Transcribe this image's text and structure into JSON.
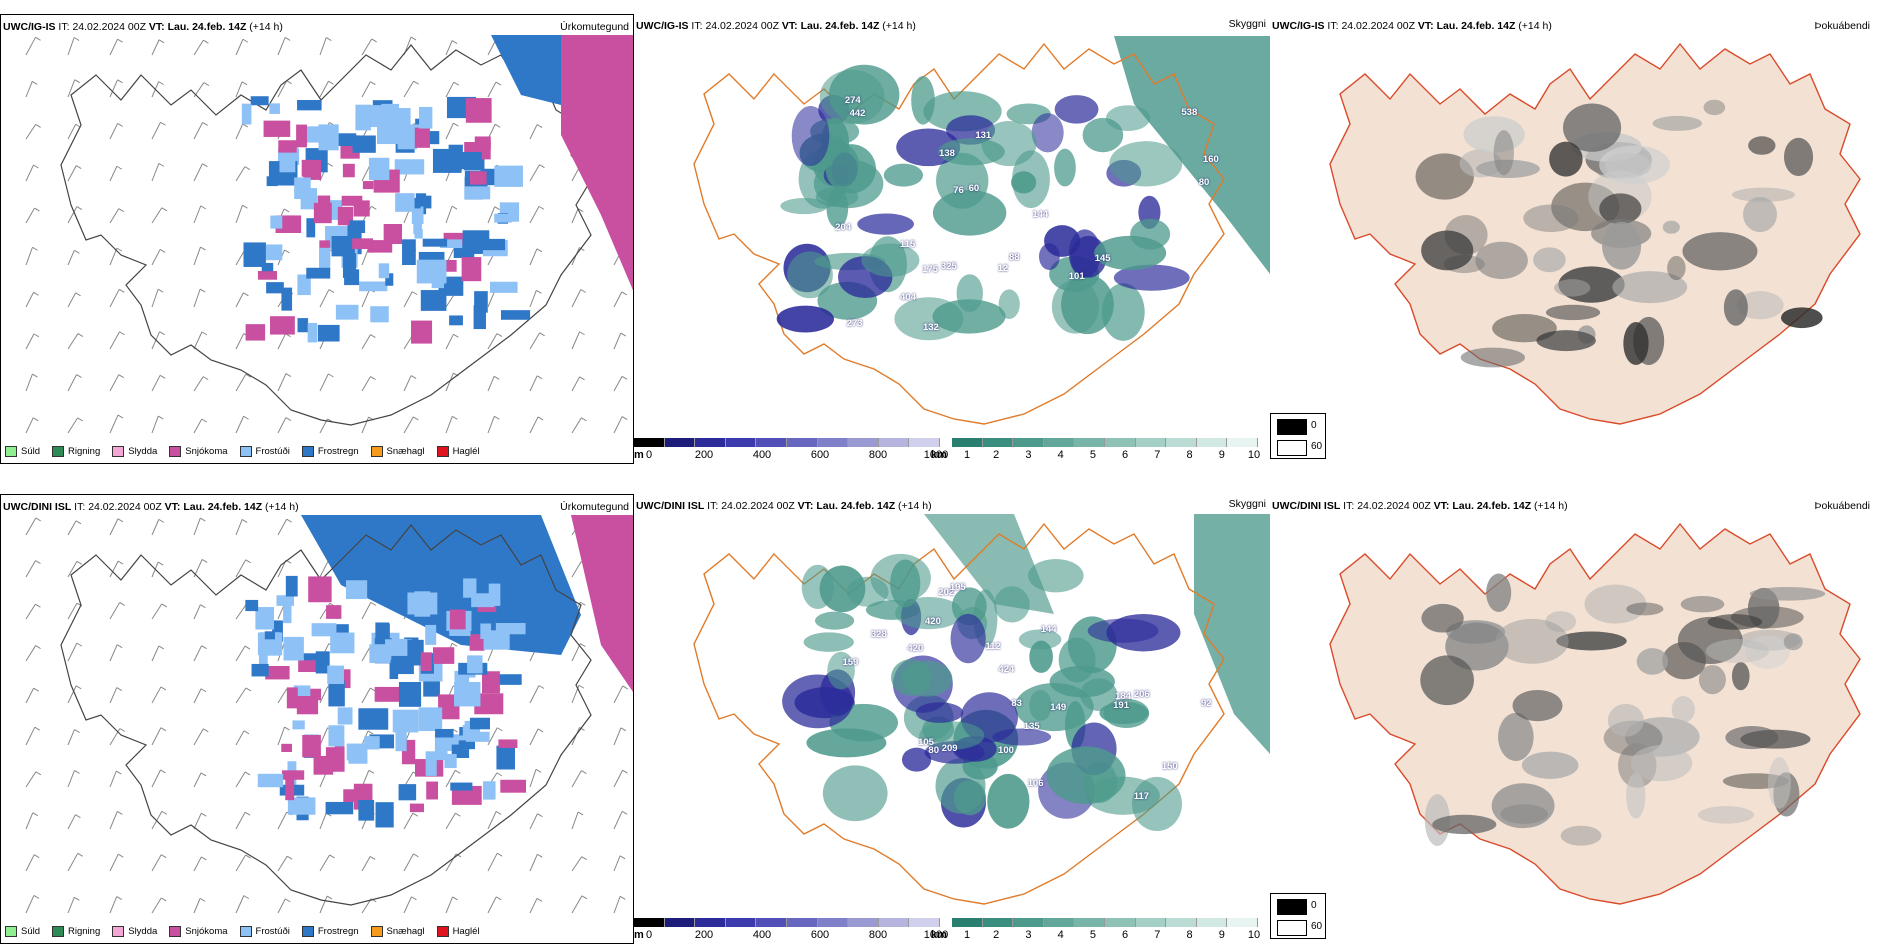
{
  "rows": [
    {
      "model": "UWC/IG-IS",
      "it_label": "IT:",
      "it_value": "24.02.2024 00Z",
      "vt_label": "VT:",
      "vt_value": "Lau. 24.feb. 14Z",
      "lead": "(+14 h)",
      "panels": {
        "precip_type": "Úrkomutegund",
        "clouds": "Skyggni",
        "fog": "Þokuábendi"
      },
      "cloud_numbers": [
        "442",
        "274",
        "204",
        "538",
        "160",
        "101",
        "131",
        "325",
        "273",
        "145",
        "175",
        "144",
        "132",
        "115",
        "88",
        "76",
        "12",
        "404",
        "138",
        "60",
        "80"
      ]
    },
    {
      "model": "UWC/DINI ISL",
      "it_label": "IT:",
      "it_value": "24.02.2024 00Z",
      "vt_label": "VT:",
      "vt_value": "Lau. 24.feb. 14Z",
      "lead": "(+14 h)",
      "panels": {
        "precip_type": "Úrkomutegund",
        "clouds": "Skyggni",
        "fog": "Þokuábendi"
      },
      "cloud_numbers": [
        "420",
        "328",
        "424",
        "202",
        "209",
        "144",
        "159",
        "149",
        "150",
        "191",
        "195",
        "184",
        "117",
        "206",
        "135",
        "106",
        "112",
        "83",
        "105",
        "100",
        "92",
        "80",
        "420"
      ]
    }
  ],
  "precip_legend": [
    {
      "label": "Súld",
      "color": "#90ee90"
    },
    {
      "label": "Rigning",
      "color": "#2e8b57"
    },
    {
      "label": "Slydda",
      "color": "#f4a6d7"
    },
    {
      "label": "Snjókoma",
      "color": "#c94fa0"
    },
    {
      "label": "Frostúði",
      "color": "#8ec1f5"
    },
    {
      "label": "Frostregn",
      "color": "#2f78c8"
    },
    {
      "label": "Snæhagl",
      "color": "#f59a1b"
    },
    {
      "label": "Haglél",
      "color": "#e0141e"
    }
  ],
  "ceiling_bar": {
    "unit": "m",
    "ticks": [
      "0",
      "200",
      "400",
      "600",
      "800",
      "1000"
    ],
    "colors": [
      "#000000",
      "#1c1c7a",
      "#2b2b9a",
      "#3b3bae",
      "#5050b8",
      "#6767c0",
      "#8080c8",
      "#9a9ad2",
      "#b4b4de",
      "#d0d0ec"
    ]
  },
  "visibility_bar": {
    "unit": "km",
    "ticks": [
      "1",
      "2",
      "3",
      "4",
      "5",
      "6",
      "7",
      "8",
      "9",
      "10"
    ],
    "colors": [
      "#2a8070",
      "#3a8e80",
      "#4d9a8c",
      "#62a79a",
      "#78b4a8",
      "#8ec2b7",
      "#a4cfc5",
      "#bbdcd4",
      "#d2e9e3",
      "#e8f4f1"
    ]
  },
  "fog_legend": [
    {
      "label": "0",
      "color": "#000000"
    },
    {
      "label": "60",
      "color": "#ffffff"
    }
  ]
}
